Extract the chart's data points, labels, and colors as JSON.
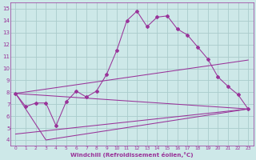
{
  "xlabel": "Windchill (Refroidissement éolien,°C)",
  "bg_color": "#cde8e8",
  "line_color": "#993399",
  "grid_color": "#aacccc",
  "xlim": [
    -0.5,
    23.5
  ],
  "ylim": [
    3.5,
    15.5
  ],
  "xticks": [
    0,
    1,
    2,
    3,
    4,
    5,
    6,
    7,
    8,
    9,
    10,
    11,
    12,
    13,
    14,
    15,
    16,
    17,
    18,
    19,
    20,
    21,
    22,
    23
  ],
  "yticks": [
    4,
    5,
    6,
    7,
    8,
    9,
    10,
    11,
    12,
    13,
    14,
    15
  ],
  "line1_x": [
    0,
    1,
    2,
    3,
    4,
    5,
    6,
    7,
    8,
    9,
    10,
    11,
    12,
    13,
    14,
    15,
    16,
    17,
    18,
    19,
    20,
    21,
    22,
    23
  ],
  "line1_y": [
    7.9,
    6.8,
    7.1,
    7.1,
    5.2,
    7.2,
    8.1,
    7.6,
    8.1,
    9.5,
    11.5,
    14.0,
    14.8,
    13.5,
    14.3,
    14.4,
    13.3,
    12.8,
    11.8,
    10.8,
    9.3,
    8.5,
    7.8,
    6.6
  ],
  "line2_x": [
    0,
    3,
    23
  ],
  "line2_y": [
    7.9,
    4.0,
    6.6
  ],
  "line3_x": [
    0,
    23
  ],
  "line3_y": [
    7.9,
    10.7
  ],
  "line4_x": [
    0,
    23
  ],
  "line4_y": [
    7.9,
    6.6
  ],
  "line5_x": [
    0,
    23
  ],
  "line5_y": [
    4.5,
    6.6
  ]
}
